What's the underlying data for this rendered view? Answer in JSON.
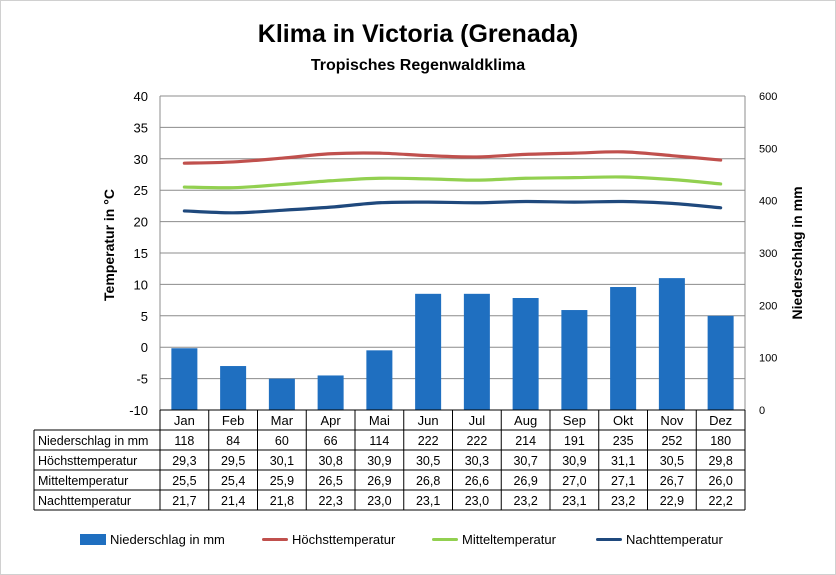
{
  "chart_data": {
    "type": "bar+line",
    "title": "Klima in Victoria (Grenada)",
    "subtitle": "Tropisches Regenwaldklima",
    "ylabel_left": "Temperatur in °C",
    "ylabel_right": "Niederschlag in mm",
    "ylim_left": [
      -10,
      40
    ],
    "ylim_right": [
      0,
      600
    ],
    "yticks_left": [
      "40",
      "35",
      "30",
      "25",
      "20",
      "15",
      "10",
      "5",
      "0",
      "-5",
      "-10"
    ],
    "yticks_right": [
      "600",
      "500",
      "400",
      "300",
      "200",
      "100",
      "0"
    ],
    "grid": true,
    "legend_position": "bottom",
    "categories": [
      "Jan",
      "Feb",
      "Mar",
      "Apr",
      "Mai",
      "Jun",
      "Jul",
      "Aug",
      "Sep",
      "Okt",
      "Nov",
      "Dez"
    ],
    "series": [
      {
        "name": "Niederschlag in mm",
        "type": "bar",
        "axis": "right",
        "color": "#1F6FC0",
        "values": [
          118,
          84,
          60,
          66,
          114,
          222,
          222,
          214,
          191,
          235,
          252,
          180
        ],
        "labels": [
          "118",
          "84",
          "60",
          "66",
          "114",
          "222",
          "222",
          "214",
          "191",
          "235",
          "252",
          "180"
        ]
      },
      {
        "name": "Höchsttemperatur",
        "type": "line",
        "axis": "left",
        "color": "#C0504D",
        "values": [
          29.3,
          29.5,
          30.1,
          30.8,
          30.9,
          30.5,
          30.3,
          30.7,
          30.9,
          31.1,
          30.5,
          29.8
        ],
        "labels": [
          "29,3",
          "29,5",
          "30,1",
          "30,8",
          "30,9",
          "30,5",
          "30,3",
          "30,7",
          "30,9",
          "31,1",
          "30,5",
          "29,8"
        ]
      },
      {
        "name": "Mitteltemperatur",
        "type": "line",
        "axis": "left",
        "color": "#92D050",
        "values": [
          25.5,
          25.4,
          25.9,
          26.5,
          26.9,
          26.8,
          26.6,
          26.9,
          27.0,
          27.1,
          26.7,
          26.0
        ],
        "labels": [
          "25,5",
          "25,4",
          "25,9",
          "26,5",
          "26,9",
          "26,8",
          "26,6",
          "26,9",
          "27,0",
          "27,1",
          "26,7",
          "26,0"
        ]
      },
      {
        "name": "Nachttemperatur",
        "type": "line",
        "axis": "left",
        "color": "#1F497D",
        "values": [
          21.7,
          21.4,
          21.8,
          22.3,
          23.0,
          23.1,
          23.0,
          23.2,
          23.1,
          23.2,
          22.9,
          22.2
        ],
        "labels": [
          "21,7",
          "21,4",
          "21,8",
          "22,3",
          "23,0",
          "23,1",
          "23,0",
          "23,2",
          "23,1",
          "23,2",
          "22,9",
          "22,2"
        ]
      }
    ]
  }
}
